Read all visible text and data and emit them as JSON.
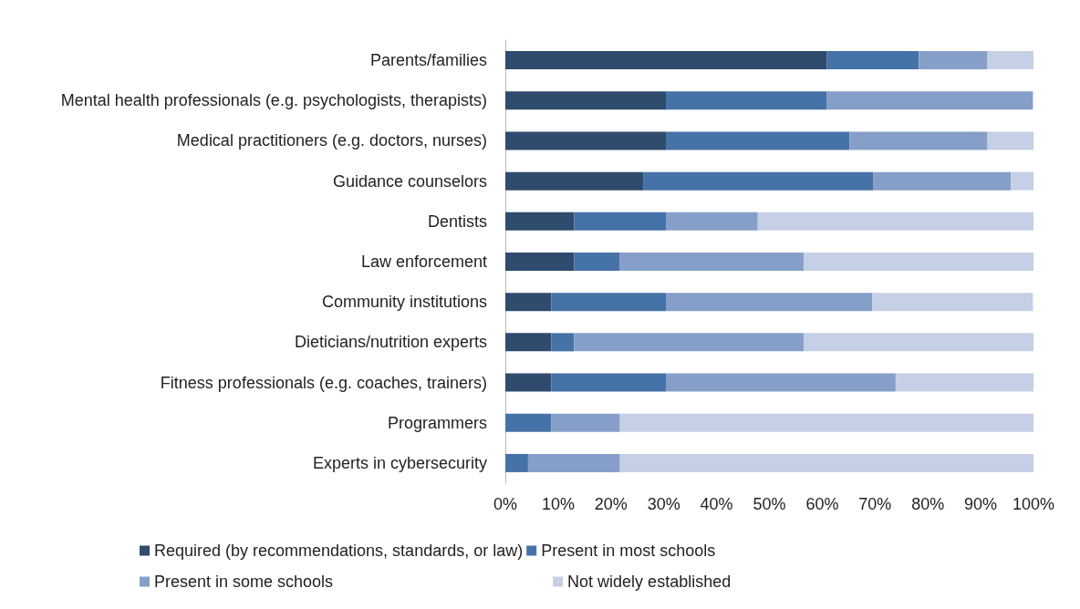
{
  "chart_data": {
    "type": "bar",
    "orientation": "horizontal",
    "stacked": true,
    "categories": [
      "Parents/families",
      "Mental health professionals (e.g. psychologists, therapists)",
      "Medical practitioners (e.g. doctors, nurses)",
      "Guidance counselors",
      "Dentists",
      "Law enforcement",
      "Community institutions",
      "Dieticians/nutrition experts",
      "Fitness professionals (e.g. coaches, trainers)",
      "Programmers",
      "Experts in cybersecurity"
    ],
    "series": [
      {
        "name": "Required (by recommendations, standards, or law)",
        "color": "#2f4b6e",
        "values": [
          60.9,
          30.4,
          30.4,
          26.1,
          13.0,
          13.0,
          8.7,
          8.7,
          8.7,
          0,
          0
        ]
      },
      {
        "name": "Present in most schools",
        "color": "#4572a7",
        "values": [
          17.4,
          30.4,
          34.8,
          43.5,
          17.4,
          8.7,
          21.7,
          4.3,
          21.7,
          8.7,
          4.3
        ]
      },
      {
        "name": "Present in some schools",
        "color": "#869fc9",
        "values": [
          13.0,
          39.1,
          26.1,
          26.1,
          17.4,
          34.8,
          39.1,
          43.5,
          43.5,
          13.0,
          17.4
        ]
      },
      {
        "name": "Not widely established",
        "color": "#c5cfe5",
        "values": [
          8.7,
          0,
          8.7,
          4.3,
          52.2,
          43.5,
          30.4,
          43.5,
          26.1,
          78.3,
          78.3
        ]
      }
    ],
    "xlim": [
      0,
      100
    ],
    "xticks": [
      {
        "value": 0,
        "label": "0%"
      },
      {
        "value": 10,
        "label": "10%"
      },
      {
        "value": 20,
        "label": "20%"
      },
      {
        "value": 30,
        "label": "30%"
      },
      {
        "value": 40,
        "label": "40%"
      },
      {
        "value": 50,
        "label": "50%"
      },
      {
        "value": 60,
        "label": "60%"
      },
      {
        "value": 70,
        "label": "70%"
      },
      {
        "value": 80,
        "label": "80%"
      },
      {
        "value": 90,
        "label": "90%"
      },
      {
        "value": 100,
        "label": "100%"
      }
    ],
    "grid": false,
    "legend": "bottom"
  }
}
